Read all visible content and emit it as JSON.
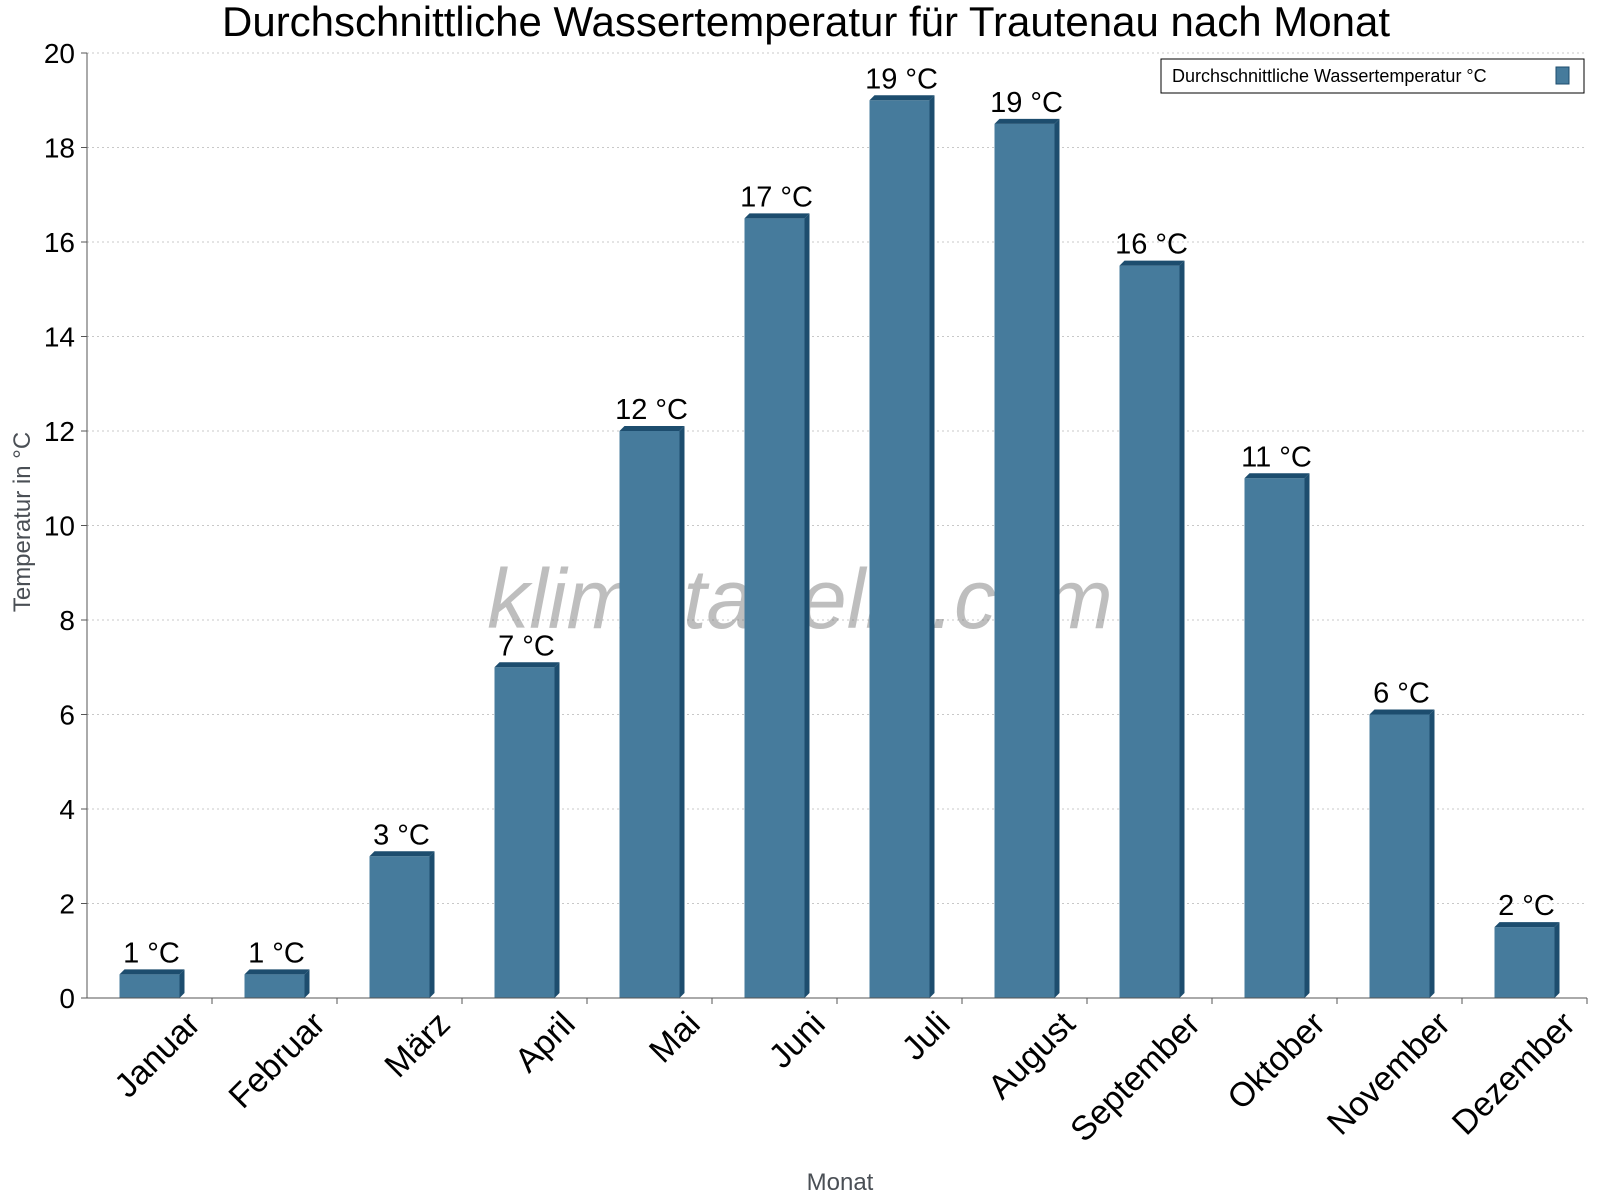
{
  "colors": {
    "bar_front": "#467b9c",
    "bar_side": "#1d4d6e",
    "bar_top": "#1d4d6e",
    "grid": "#c8c8c8",
    "axis": "#555555"
  },
  "watermark": "klimatabelle.com",
  "chart_data": {
    "type": "bar",
    "title": "Durchschnittliche Wassertemperatur für Trautenau nach Monat",
    "xlabel": "Monat",
    "ylabel": "Temperatur in °C",
    "ylim": [
      0,
      20
    ],
    "yticks": [
      0,
      2,
      4,
      6,
      8,
      10,
      12,
      14,
      16,
      18,
      20
    ],
    "grid": true,
    "legend_position": "top-right",
    "categories": [
      "Januar",
      "Februar",
      "März",
      "April",
      "Mai",
      "Juni",
      "Juli",
      "August",
      "September",
      "Oktober",
      "November",
      "Dezember"
    ],
    "series": [
      {
        "name": "Durchschnittliche Wassertemperatur °C",
        "values": [
          0.5,
          0.5,
          3,
          7,
          12,
          16.5,
          19,
          18.5,
          15.5,
          11,
          6,
          1.5
        ],
        "labels": [
          "1 °C",
          "1 °C",
          "3 °C",
          "7 °C",
          "12 °C",
          "17 °C",
          "19 °C",
          "19 °C",
          "16 °C",
          "11 °C",
          "6 °C",
          "2 °C"
        ]
      }
    ]
  }
}
